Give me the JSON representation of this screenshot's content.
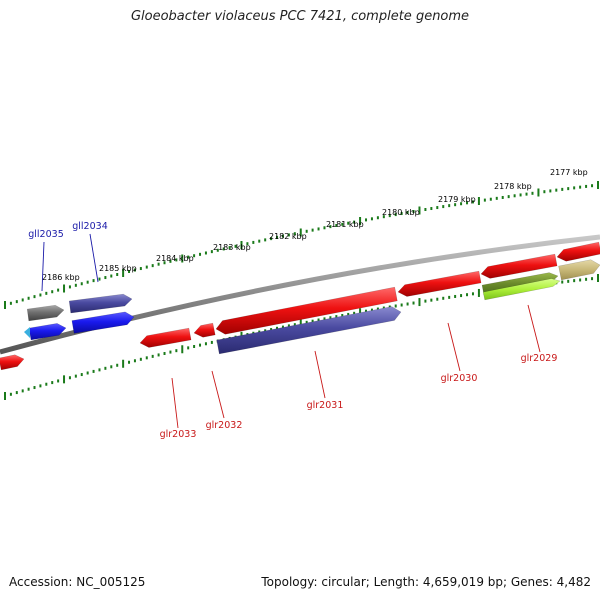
{
  "title": "Gloeobacter violaceus PCC 7421, complete genome",
  "accession_text": "Accession: NC_005125",
  "summary_text": "Topology: circular; Length: 4,659,019 bp; Genes: 4,482",
  "colors": {
    "backbone": "#8a8a8a",
    "tick": "#1a7a1a",
    "gene_red": "#ee1111",
    "gene_navy": "#4a4aa0",
    "gene_blue": "#1a1aee",
    "gene_gray": "#707070",
    "gene_olive": "#6a8a2a",
    "gene_lime": "#aef03a",
    "gene_khaki": "#c8b878",
    "label_forward": "#1a1aa8",
    "label_reverse": "#c81818"
  },
  "kbp_ticks": [
    {
      "label": "2177 kbp"
    },
    {
      "label": "2178 kbp"
    },
    {
      "label": "2179 kbp"
    },
    {
      "label": "2180 kbp"
    },
    {
      "label": "2181 kbp"
    },
    {
      "label": "2182 kbp"
    },
    {
      "label": "2183 kbp"
    },
    {
      "label": "2184 kbp"
    },
    {
      "label": "2185 kbp"
    },
    {
      "label": "2186 kbp"
    }
  ],
  "gene_labels": [
    {
      "name": "gll2035",
      "strand": "forward"
    },
    {
      "name": "gll2034",
      "strand": "forward"
    },
    {
      "name": "glr2033",
      "strand": "reverse"
    },
    {
      "name": "glr2032",
      "strand": "reverse"
    },
    {
      "name": "glr2031",
      "strand": "reverse"
    },
    {
      "name": "glr2030",
      "strand": "reverse"
    },
    {
      "name": "glr2029",
      "strand": "reverse"
    }
  ]
}
